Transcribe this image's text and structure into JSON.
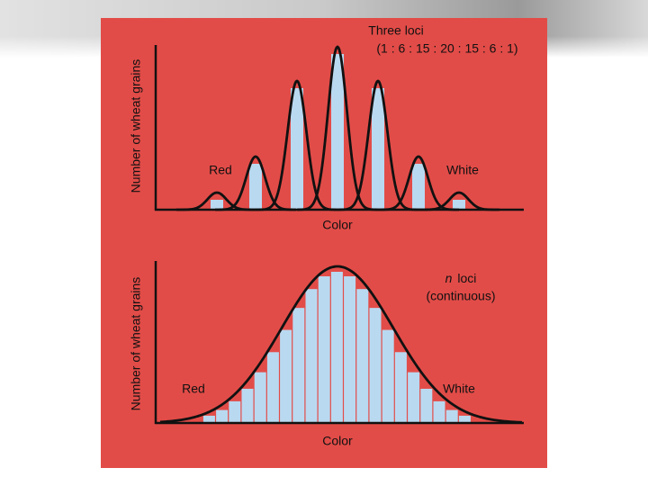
{
  "top_panel": {
    "title": "Three loci",
    "ratio": "(1 : 6 : 15 :  20 : 15 : 6 : 1)",
    "red_label": "Red",
    "white_label": "White",
    "y_axis_label": "Number of wheat grains",
    "x_axis_label": "Color"
  },
  "bottom_panel": {
    "loci_symbol": "n",
    "loci_text": "loci",
    "subtitle": "(continuous)",
    "red_label": "Red",
    "white_label": "White",
    "y_axis_label": "Number of wheat grains",
    "x_axis_label": "Color"
  }
}
